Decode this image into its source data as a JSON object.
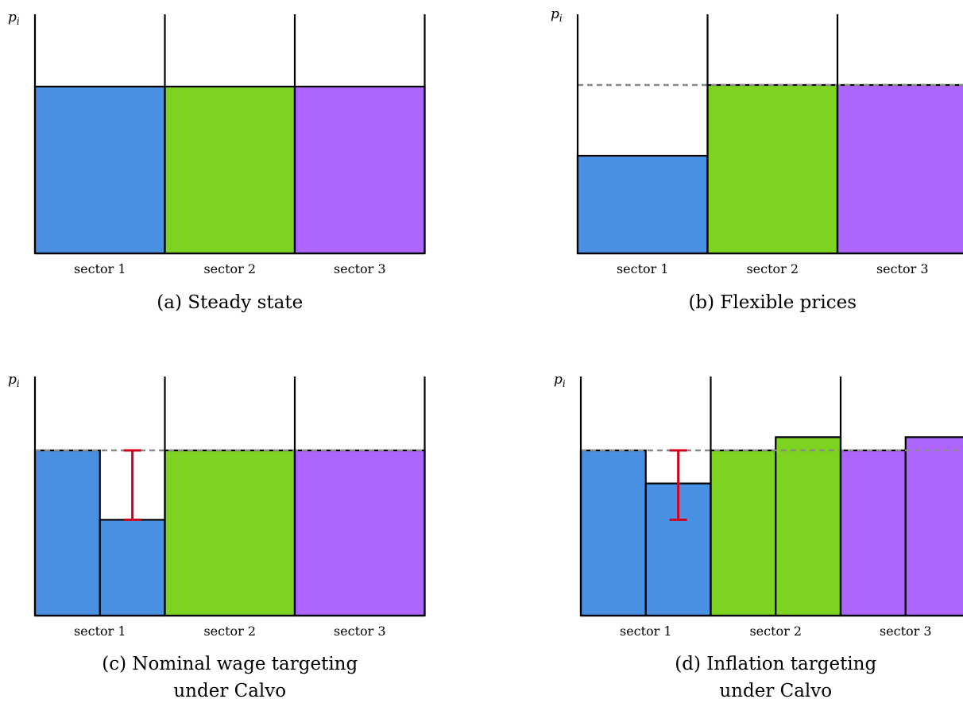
{
  "colors": {
    "sector_1": "#4a90e2",
    "sector_2": "#7ed321",
    "sector_3": "#ad65fe",
    "reference_line": "#8a8a8a",
    "gap_marker": "#d0021b",
    "outline": "#000000"
  },
  "panels": [
    {
      "id": "a",
      "caption_lines": [
        "(a) Steady state"
      ],
      "y_label": "p",
      "y_label_sub": "i",
      "reference_line": false,
      "sectors": [
        {
          "label": "sector 1",
          "color": "sector_1",
          "prices": [
            1.0
          ]
        },
        {
          "label": "sector 2",
          "color": "sector_2",
          "prices": [
            1.0
          ]
        },
        {
          "label": "sector 3",
          "color": "sector_3",
          "prices": [
            1.0
          ]
        }
      ],
      "gap_marker": null
    },
    {
      "id": "b",
      "caption_lines": [
        "(b) Flexible prices"
      ],
      "y_label": "p",
      "y_label_sub": "i",
      "reference_line": true,
      "sectors": [
        {
          "label": "sector 1",
          "color": "sector_1",
          "prices": [
            0.58
          ]
        },
        {
          "label": "sector 2",
          "color": "sector_2",
          "prices": [
            1.0
          ]
        },
        {
          "label": "sector 3",
          "color": "sector_3",
          "prices": [
            1.0
          ]
        }
      ],
      "gap_marker": null
    },
    {
      "id": "c",
      "caption_lines": [
        "(c) Nominal wage targeting",
        "under Calvo"
      ],
      "y_label": "p",
      "y_label_sub": "i",
      "reference_line": true,
      "sectors": [
        {
          "label": "sector 1",
          "color": "sector_1",
          "prices": [
            1.0,
            0.58
          ]
        },
        {
          "label": "sector 2",
          "color": "sector_2",
          "prices": [
            1.0
          ]
        },
        {
          "label": "sector 3",
          "color": "sector_3",
          "prices": [
            1.0
          ]
        }
      ],
      "gap_marker": {
        "sector": 0,
        "top": 1.0,
        "bottom": 0.58
      }
    },
    {
      "id": "d",
      "caption_lines": [
        "(d) Inflation targeting",
        "under Calvo"
      ],
      "y_label": "p",
      "y_label_sub": "i",
      "reference_line": true,
      "sectors": [
        {
          "label": "sector 1",
          "color": "sector_1",
          "prices": [
            1.0,
            0.8
          ]
        },
        {
          "label": "sector 2",
          "color": "sector_2",
          "prices": [
            1.0,
            1.08
          ]
        },
        {
          "label": "sector 3",
          "color": "sector_3",
          "prices": [
            1.0,
            1.08
          ]
        }
      ],
      "gap_marker": {
        "sector": 0,
        "top": 1.0,
        "bottom": 0.58
      }
    }
  ]
}
